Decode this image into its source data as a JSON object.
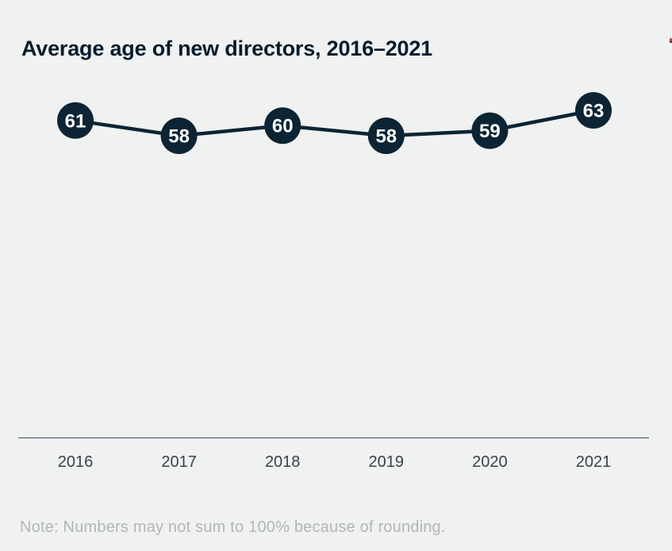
{
  "header": {
    "title": "Average age of new directors, 2016–2021"
  },
  "chart_data": {
    "type": "line",
    "title": "Average age of new directors, 2016–2021",
    "categories": [
      "2016",
      "2017",
      "2018",
      "2019",
      "2020",
      "2021"
    ],
    "values": [
      61,
      58,
      60,
      58,
      59,
      63
    ],
    "xlabel": "",
    "ylabel": "",
    "legend_position": "none",
    "grid": false,
    "axes_shown": "x-axis-only",
    "ylim": [
      55,
      66
    ],
    "marker_style": "filled-circle-with-value-label",
    "colors": {
      "background": "#f0f1f1",
      "line": "#0c2433",
      "marker_fill": "#0c2433",
      "marker_label": "#ffffff",
      "axis_line": "#596273",
      "tick_label": "#39424b",
      "title": "#051c2c",
      "note": "#b2b6b9"
    }
  },
  "footer": {
    "note": "Note: Numbers may not sum to 100% because of rounding."
  }
}
